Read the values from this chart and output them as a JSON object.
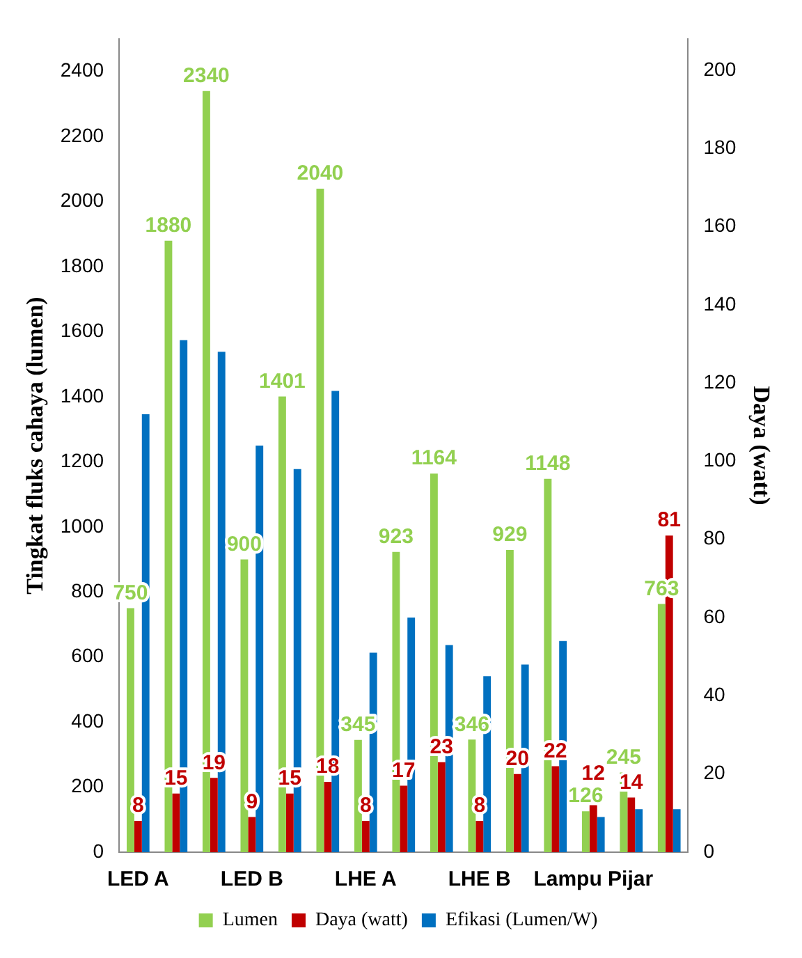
{
  "chart_data": {
    "type": "bar",
    "ylabel": "Tingkat fluks cahaya (lumen)",
    "y2label": "Daya (watt)",
    "categories": [
      "LED A",
      null,
      null,
      "LED B",
      null,
      null,
      "LHE A",
      null,
      null,
      "LHE B",
      null,
      null,
      "Lampu Pijar",
      null,
      null
    ],
    "series": [
      {
        "name": "Lumen",
        "color": "#92d050",
        "values": [
          750,
          1880,
          2340,
          900,
          1401,
          2040,
          345,
          923,
          1164,
          346,
          929,
          1148,
          126,
          245,
          763
        ],
        "value_labels": [
          "750",
          "1880",
          "2340",
          "900",
          "1401",
          "2040",
          "345",
          "923",
          "1164",
          "346",
          "929",
          "1148",
          "126",
          "245",
          "763"
        ]
      },
      {
        "name": "Daya (watt)",
        "color": "#c00000",
        "axis": "y2",
        "values": [
          8,
          15,
          19,
          9,
          15,
          18,
          8,
          17,
          23,
          8,
          20,
          22,
          12,
          14,
          81
        ],
        "value_labels": [
          "8",
          "15",
          "19",
          "9",
          "15",
          "18",
          "8",
          "17",
          "23",
          "8",
          "20",
          "22",
          "12",
          "14",
          "81"
        ]
      },
      {
        "name": "Efikasi (Lumen/W)",
        "color": "#0070c0",
        "axis": "y2",
        "values": [
          112,
          131,
          128,
          104,
          98,
          118,
          51,
          60,
          53,
          45,
          48,
          54,
          9,
          11,
          11
        ]
      }
    ],
    "ylim": [
      0,
      2500
    ],
    "yticks": [
      0,
      200,
      400,
      600,
      800,
      1000,
      1200,
      1400,
      1600,
      1800,
      2000,
      2200,
      2400
    ],
    "y2lim": [
      0,
      208
    ],
    "y2ticks": [
      0,
      20,
      40,
      60,
      80,
      100,
      120,
      140,
      160,
      180,
      200
    ],
    "grid": false,
    "legend": "bottom"
  }
}
